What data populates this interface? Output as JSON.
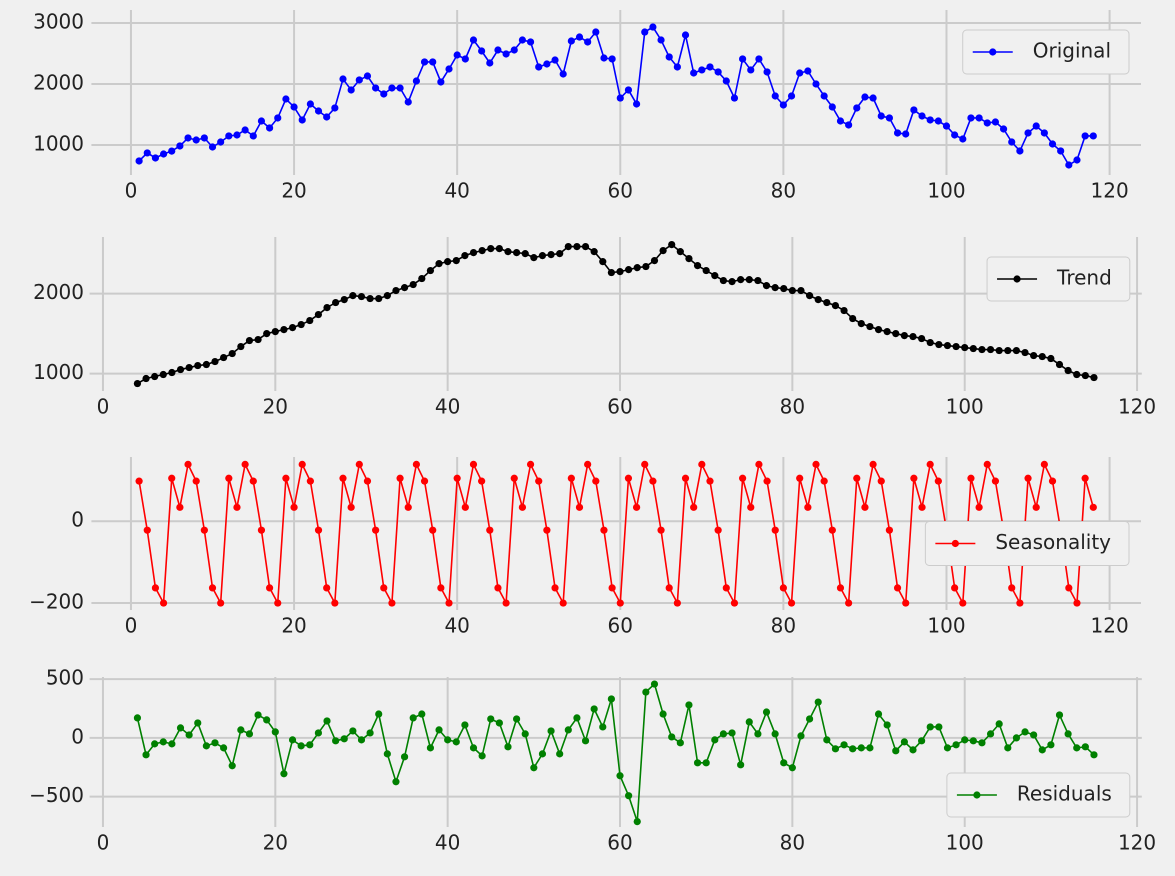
{
  "chart_data": [
    {
      "type": "line",
      "legend": "upper right",
      "grid": true,
      "xlim": [
        -4.85,
        123.85
      ],
      "ylim": [
        508,
        3213
      ],
      "xticks": [
        0,
        20,
        40,
        60,
        80,
        100,
        120
      ],
      "yticks": [
        1000,
        2000,
        3000
      ],
      "x": [
        1,
        2,
        3,
        4,
        5,
        6,
        7,
        8,
        9,
        10,
        11,
        12,
        13,
        14,
        15,
        16,
        17,
        18,
        19,
        20,
        21,
        22,
        23,
        24,
        25,
        26,
        27,
        28,
        29,
        30,
        31,
        32,
        33,
        34,
        35,
        36,
        37,
        38,
        39,
        40,
        41,
        42,
        43,
        44,
        45,
        46,
        47,
        48,
        49,
        50,
        51,
        52,
        53,
        54,
        55,
        56,
        57,
        58,
        59,
        60,
        61,
        62,
        63,
        64,
        65,
        66,
        67,
        68,
        69,
        70,
        71,
        72,
        73,
        74,
        75,
        76,
        77,
        78,
        79,
        80,
        81,
        82,
        83,
        84,
        85,
        86,
        87,
        88,
        89,
        90,
        91,
        92,
        93,
        94,
        95,
        96,
        97,
        98,
        99,
        100,
        101,
        102,
        103,
        104,
        105,
        106,
        107,
        108,
        109,
        110,
        111,
        112,
        113,
        114,
        115,
        116,
        117,
        118
      ],
      "series": [
        {
          "name": "Original",
          "color": "#0000ff",
          "values": [
            738,
            870,
            787,
            852,
            900,
            984,
            1115,
            1082,
            1115,
            967,
            1049,
            1148,
            1164,
            1246,
            1148,
            1393,
            1279,
            1443,
            1754,
            1623,
            1410,
            1672,
            1557,
            1459,
            1607,
            2082,
            1902,
            2066,
            2131,
            1934,
            1836,
            1934,
            1934,
            1705,
            2049,
            2361,
            2361,
            2033,
            2246,
            2475,
            2410,
            2721,
            2541,
            2344,
            2557,
            2492,
            2557,
            2721,
            2689,
            2279,
            2328,
            2393,
            2164,
            2705,
            2770,
            2689,
            2852,
            2426,
            2410,
            1770,
            1902,
            1672,
            2852,
            2934,
            2721,
            2443,
            2279,
            2803,
            2180,
            2230,
            2279,
            2197,
            2049,
            1770,
            2410,
            2230,
            2410,
            2197,
            1803,
            1656,
            1803,
            2180,
            2213,
            2000,
            1803,
            1623,
            1393,
            1328,
            1607,
            1787,
            1770,
            1475,
            1443,
            1197,
            1180,
            1574,
            1475,
            1410,
            1393,
            1311,
            1164,
            1098,
            1443,
            1443,
            1361,
            1377,
            1262,
            1049,
            902,
            1197,
            1311,
            1197,
            1016,
            902,
            672,
            754,
            1148,
            1148
          ]
        }
      ]
    },
    {
      "type": "line",
      "legend": "upper right",
      "grid": true,
      "xlim": [
        -1.55,
        120.55
      ],
      "ylim": [
        782,
        2708
      ],
      "xticks": [
        0,
        20,
        40,
        60,
        80,
        100,
        120
      ],
      "yticks": [
        1000,
        2000
      ],
      "x": [
        4,
        5,
        6,
        7,
        8,
        9,
        10,
        11,
        12,
        13,
        14,
        15,
        16,
        17,
        18,
        19,
        20,
        21,
        22,
        23,
        24,
        25,
        26,
        27,
        28,
        29,
        30,
        31,
        32,
        33,
        34,
        35,
        36,
        37,
        38,
        39,
        40,
        41,
        42,
        43,
        44,
        45,
        46,
        47,
        48,
        49,
        50,
        51,
        52,
        53,
        54,
        55,
        56,
        57,
        58,
        59,
        60,
        61,
        62,
        63,
        64,
        65,
        66,
        67,
        68,
        69,
        70,
        71,
        72,
        73,
        74,
        75,
        76,
        77,
        78,
        79,
        80,
        81,
        82,
        83,
        84,
        85,
        86,
        87,
        88,
        89,
        90,
        91,
        92,
        93,
        94,
        95,
        96,
        97,
        98,
        99,
        100,
        101,
        102,
        103,
        104,
        105,
        106,
        107,
        108,
        109,
        110,
        111,
        112,
        113,
        114,
        115
      ],
      "series": [
        {
          "name": "Trend",
          "color": "#000000",
          "values": [
            875,
            938,
            963,
            988,
            1013,
            1050,
            1075,
            1100,
            1113,
            1150,
            1200,
            1250,
            1338,
            1413,
            1425,
            1500,
            1525,
            1550,
            1575,
            1613,
            1663,
            1738,
            1825,
            1888,
            1925,
            1975,
            1963,
            1938,
            1938,
            1975,
            2038,
            2075,
            2113,
            2188,
            2288,
            2375,
            2400,
            2413,
            2475,
            2513,
            2538,
            2563,
            2563,
            2525,
            2513,
            2500,
            2450,
            2475,
            2488,
            2500,
            2588,
            2588,
            2588,
            2525,
            2400,
            2263,
            2275,
            2300,
            2325,
            2338,
            2413,
            2538,
            2613,
            2525,
            2438,
            2350,
            2288,
            2225,
            2163,
            2150,
            2175,
            2175,
            2163,
            2100,
            2075,
            2063,
            2038,
            2038,
            1975,
            1925,
            1888,
            1850,
            1788,
            1688,
            1625,
            1588,
            1550,
            1525,
            1500,
            1475,
            1463,
            1438,
            1388,
            1363,
            1350,
            1338,
            1325,
            1313,
            1300,
            1300,
            1288,
            1288,
            1288,
            1263,
            1225,
            1213,
            1188,
            1113,
            1038,
            988,
            975,
            950
          ]
        }
      ]
    },
    {
      "type": "line",
      "legend": "center right",
      "grid": true,
      "xlim": [
        -4.85,
        123.85
      ],
      "ylim": [
        -217,
        157
      ],
      "xticks": [
        0,
        20,
        40,
        60,
        80,
        100,
        120
      ],
      "yticks": [
        {
          "value": -200,
          "label": "−200"
        },
        0
      ],
      "x": [
        1,
        2,
        3,
        4,
        5,
        6,
        7,
        8,
        9,
        10,
        11,
        12,
        13,
        14,
        15,
        16,
        17,
        18,
        19,
        20,
        21,
        22,
        23,
        24,
        25,
        26,
        27,
        28,
        29,
        30,
        31,
        32,
        33,
        34,
        35,
        36,
        37,
        38,
        39,
        40,
        41,
        42,
        43,
        44,
        45,
        46,
        47,
        48,
        49,
        50,
        51,
        52,
        53,
        54,
        55,
        56,
        57,
        58,
        59,
        60,
        61,
        62,
        63,
        64,
        65,
        66,
        67,
        68,
        69,
        70,
        71,
        72,
        73,
        74,
        75,
        76,
        77,
        78,
        79,
        80,
        81,
        82,
        83,
        84,
        85,
        86,
        87,
        88,
        89,
        90,
        91,
        92,
        93,
        94,
        95,
        96,
        97,
        98,
        99,
        100,
        101,
        102,
        103,
        104,
        105,
        106,
        107,
        108,
        109,
        110,
        111,
        112,
        113,
        114,
        115,
        116,
        117,
        118
      ],
      "series": [
        {
          "name": "Seasonality",
          "color": "#ff0000",
          "values": [
            98,
            -22,
            -163,
            -200,
            105,
            34,
            139,
            98,
            -22,
            -163,
            -200,
            105,
            34,
            139,
            98,
            -22,
            -163,
            -200,
            105,
            34,
            139,
            98,
            -22,
            -163,
            -200,
            105,
            34,
            139,
            98,
            -22,
            -163,
            -200,
            105,
            34,
            139,
            98,
            -22,
            -163,
            -200,
            105,
            34,
            139,
            98,
            -22,
            -163,
            -200,
            105,
            34,
            139,
            98,
            -22,
            -163,
            -200,
            105,
            34,
            139,
            98,
            -22,
            -163,
            -200,
            105,
            34,
            139,
            98,
            -22,
            -163,
            -200,
            105,
            34,
            139,
            98,
            -22,
            -163,
            -200,
            105,
            34,
            139,
            98,
            -22,
            -163,
            -200,
            105,
            34,
            139,
            98,
            -22,
            -163,
            -200,
            105,
            34,
            139,
            98,
            -22,
            -163,
            -200,
            105,
            34,
            139,
            98,
            -22,
            -163,
            -200,
            105,
            34,
            139,
            98,
            -22,
            -163,
            -200,
            105,
            34,
            139,
            98,
            -22,
            -163,
            -200,
            105,
            34
          ]
        }
      ]
    },
    {
      "type": "line",
      "legend": "lower right",
      "grid": true,
      "xlim": [
        -1.55,
        120.55
      ],
      "ylim": [
        -758,
        518
      ],
      "xticks": [
        0,
        20,
        40,
        60,
        80,
        100,
        120
      ],
      "yticks": [
        {
          "value": -500,
          "label": "−500"
        },
        0,
        500
      ],
      "x": [
        4,
        5,
        6,
        7,
        8,
        9,
        10,
        11,
        12,
        13,
        14,
        15,
        16,
        17,
        18,
        19,
        20,
        21,
        22,
        23,
        24,
        25,
        26,
        27,
        28,
        29,
        30,
        31,
        32,
        33,
        34,
        35,
        36,
        37,
        38,
        39,
        40,
        41,
        42,
        43,
        44,
        45,
        46,
        47,
        48,
        49,
        50,
        51,
        52,
        53,
        54,
        55,
        56,
        57,
        58,
        59,
        60,
        61,
        62,
        63,
        64,
        65,
        66,
        67,
        68,
        69,
        70,
        71,
        72,
        73,
        74,
        75,
        76,
        77,
        78,
        79,
        80,
        81,
        82,
        83,
        84,
        85,
        86,
        87,
        88,
        89,
        90,
        91,
        92,
        93,
        94,
        95,
        96,
        97,
        98,
        99,
        100,
        101,
        102,
        103,
        104,
        105,
        106,
        107,
        108,
        109,
        110,
        111,
        112,
        113,
        114,
        115
      ],
      "series": [
        {
          "name": "Residuals",
          "color": "#008000",
          "values": [
            170,
            -144,
            -51,
            -34,
            -51,
            85,
            25,
            127,
            -68,
            -42,
            -85,
            -237,
            68,
            34,
            195,
            153,
            51,
            -305,
            -17,
            -68,
            -59,
            42,
            144,
            -25,
            -8,
            59,
            -17,
            42,
            203,
            -136,
            -373,
            -161,
            170,
            203,
            -85,
            68,
            -17,
            -34,
            110,
            -85,
            -153,
            161,
            127,
            -76,
            161,
            34,
            -254,
            -136,
            59,
            -136,
            68,
            170,
            -25,
            246,
            93,
            331,
            -322,
            -492,
            -712,
            390,
            458,
            203,
            8,
            -42,
            280,
            -212,
            -212,
            -17,
            34,
            42,
            -229,
            136,
            34,
            220,
            34,
            -212,
            -254,
            17,
            161,
            305,
            -17,
            -93,
            -59,
            -93,
            -85,
            -85,
            203,
            110,
            -110,
            -34,
            -102,
            -25,
            93,
            93,
            -85,
            -59,
            -17,
            -25,
            -42,
            34,
            119,
            -85,
            0,
            51,
            25,
            -102,
            -59,
            195,
            34,
            -85,
            -76,
            -144
          ]
        }
      ]
    }
  ]
}
